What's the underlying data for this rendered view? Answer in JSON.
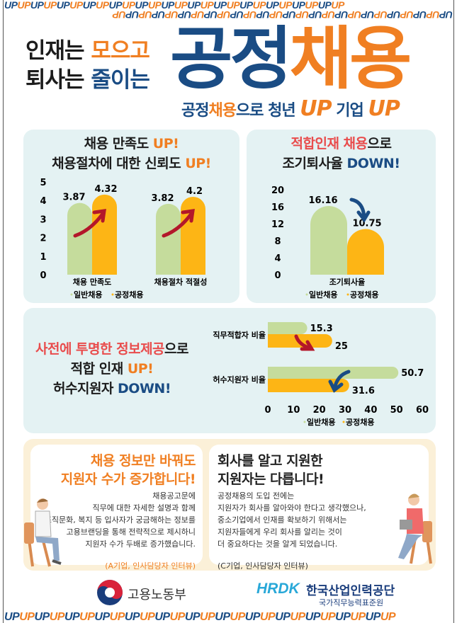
{
  "banner": {
    "pattern_text": "UP",
    "colors": [
      "#1a4c84",
      "#f07f22"
    ]
  },
  "header": {
    "line1_black": "인재는",
    "line1_accent": "모으고",
    "line2_black": "퇴사는",
    "line2_accent": "줄이는",
    "title_navy": "공정",
    "title_orange": "채용",
    "subtitle": {
      "part1": "공정",
      "part2": "채용",
      "part3": "으로 청년",
      "up1": "UP",
      "part4": "기업",
      "up2": "UP"
    }
  },
  "panel_satisfaction": {
    "line1": "채용 만족도",
    "line1_up": "UP!",
    "line2": "채용절차에 대한 신뢰도",
    "line2_up": "UP!"
  },
  "panel_turnover": {
    "line1_red": "적합인재 채용",
    "line1_rest": "으로",
    "line2": "조기퇴사율",
    "line2_down": "DOWN!"
  },
  "panel_info": {
    "line1_red": "사전에 투명한 정보제공",
    "line1_rest": "으로",
    "line2": "적합 인재",
    "line2_up": "UP!",
    "line3": "허수지원자",
    "line3_down": "DOWN!"
  },
  "chart_data": [
    {
      "type": "bar",
      "orientation": "vertical",
      "categories": [
        "채용 만족도",
        "채용절차 적절성"
      ],
      "series": [
        {
          "name": "일반채용",
          "values": [
            3.87,
            3.82
          ],
          "color": "#c5dc9c"
        },
        {
          "name": "공정채용",
          "values": [
            4.32,
            4.2
          ],
          "color": "#fdb515"
        }
      ],
      "ylim": [
        0,
        5
      ],
      "yticks": [
        0,
        1,
        2,
        3,
        4,
        5
      ],
      "legend": "bottom",
      "grid": false
    },
    {
      "type": "bar",
      "orientation": "vertical",
      "categories": [
        "조기퇴사율"
      ],
      "series": [
        {
          "name": "일반채용",
          "values": [
            16.16
          ],
          "color": "#c5dc9c"
        },
        {
          "name": "공정채용",
          "values": [
            10.75
          ],
          "color": "#fdb515"
        }
      ],
      "ylim": [
        0,
        20
      ],
      "yticks": [
        0,
        4,
        8,
        12,
        16,
        20
      ],
      "legend": "bottom",
      "grid": false
    },
    {
      "type": "bar",
      "orientation": "horizontal",
      "categories": [
        "직무적합자 비율",
        "허수지원자 비율"
      ],
      "series": [
        {
          "name": "일반채용",
          "values": [
            15.3,
            50.7
          ],
          "color": "#c5dc9c"
        },
        {
          "name": "공정채용",
          "values": [
            25,
            31.6
          ],
          "color": "#fdb515"
        }
      ],
      "xlim": [
        0,
        60
      ],
      "xticks": [
        0,
        10,
        20,
        30,
        40,
        50,
        60
      ],
      "legend": "bottom",
      "grid": false
    }
  ],
  "quotes": [
    {
      "title1": "채용 정보만 바꿔도",
      "title2": "지원자 수가 증가합니다!",
      "body": [
        "채용공고문에",
        "직무에 대한 자세한 설명과 함께",
        "조직문화, 복지 등 입사자가 궁금해하는 정보를",
        "고용브랜딩을 통해 전략적으로 제시하니",
        "지원자 수가 두배로 증가했습니다."
      ],
      "source": "(A기업, 인사담당자 인터뷰)"
    },
    {
      "title1": "회사를 알고 지원한",
      "title2": "지원자는 다릅니다!",
      "body": [
        "공정채용의 도입 전에는",
        "지원자가 회사를 알아와야 한다고 생각했으나,",
        "중소기업에서 인재를 확보하기 위해서는",
        "지원자들에게 우리 회사를 알리는 것이",
        "더 중요하다는 것을 알게 되었습니다."
      ],
      "source": "(C기업, 인사담당자 인터뷰)"
    }
  ],
  "footer": {
    "ministry": "고용노동부",
    "hrdk_logo": "HRDK",
    "hrdk_name": "한국산업인력공단",
    "hrdk_sub": "국가직무능력표준원"
  }
}
